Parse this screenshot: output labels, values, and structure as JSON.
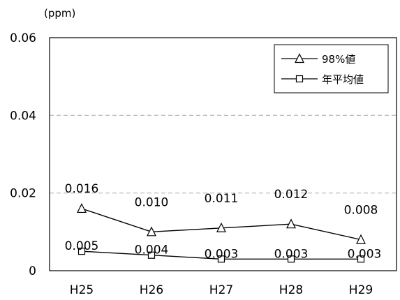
{
  "chart_data": {
    "type": "line",
    "ylabel": "(ppm)",
    "categories": [
      "H25",
      "H26",
      "H27",
      "H28",
      "H29"
    ],
    "ylim": [
      0,
      0.06
    ],
    "yticks": [
      "0",
      "0.02",
      "0.04",
      "0.06"
    ],
    "grid": "dashed horizontal",
    "legend_position": "top-right",
    "series": [
      {
        "name": "98%値",
        "marker": "triangle",
        "values": [
          0.016,
          0.01,
          0.011,
          0.012,
          0.008
        ],
        "labels": [
          "0.016",
          "0.010",
          "0.011",
          "0.012",
          "0.008"
        ]
      },
      {
        "name": "年平均値",
        "marker": "square",
        "values": [
          0.005,
          0.004,
          0.003,
          0.003,
          0.003
        ],
        "labels": [
          "0.005",
          "0.004",
          "0.003",
          "0.003",
          "0.003"
        ]
      }
    ],
    "colors": {
      "line": "#000000",
      "grid": "#b3b3b3",
      "marker_fill": "#ffffff"
    }
  }
}
